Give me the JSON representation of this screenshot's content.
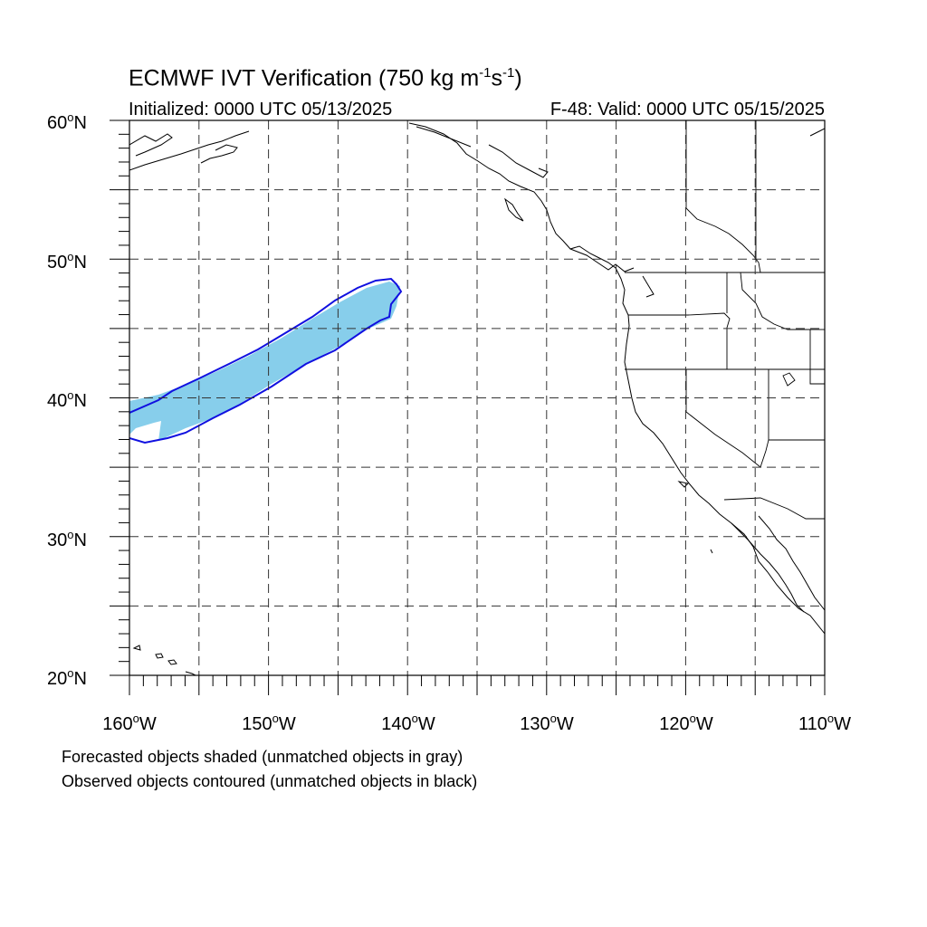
{
  "header": {
    "title_main": "ECMWF IVT Verification (750 kg m",
    "title_sup1": "-1",
    "title_mid": "s",
    "title_sup2": "-1",
    "title_end": ")",
    "initialized": "Initialized: 0000 UTC 05/13/2025",
    "valid": "F-48: Valid: 0000 UTC 05/15/2025"
  },
  "axes": {
    "lat_labels": [
      "60",
      "50",
      "40",
      "30",
      "20"
    ],
    "lat_suffix": "N",
    "lon_labels": [
      "160",
      "150",
      "140",
      "130",
      "120",
      "110"
    ],
    "lon_suffix": "W",
    "degree_symbol": "o",
    "lon_range": [
      -160,
      -110
    ],
    "lat_range": [
      20,
      60
    ],
    "gridlines": "dashed every 5 degrees"
  },
  "legend": {
    "line1": "Forecasted objects shaded (unmatched objects in gray)",
    "line2": "Observed objects contoured (unmatched objects in black)"
  },
  "colors": {
    "forecast_fill": "#87ceeb",
    "observed_contour": "#1010e0",
    "coastline": "#000000",
    "grid": "#000000"
  },
  "objects": {
    "forecast_shaded": {
      "lon_extent": [
        -160,
        -141
      ],
      "lat_extent": [
        37,
        48.5
      ],
      "matched": true
    },
    "observed_contour": {
      "lon_extent": [
        -160,
        -141
      ],
      "lat_extent": [
        36.7,
        48.7
      ],
      "matched": true
    }
  }
}
